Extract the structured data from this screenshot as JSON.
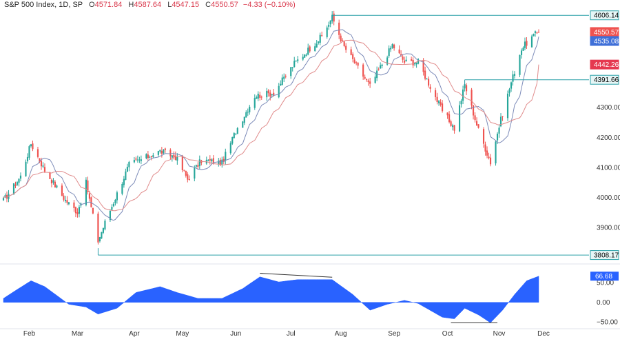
{
  "header": {
    "symbol": "S&P 500 Index, 1D, SP",
    "o_label": "O",
    "o_value": "4571.84",
    "h_label": "H",
    "h_value": "4587.64",
    "l_label": "L",
    "l_value": "4547.15",
    "c_label": "C",
    "c_value": "4550.57",
    "change": "−4.33 (−0.10%)"
  },
  "colors": {
    "up": "#26a69a",
    "down": "#ef5350",
    "ma_fast": "#7b8ab8",
    "ma_slow": "#e08a8a",
    "level_line": "#2aa0a8",
    "oscillator": "#2962ff"
  },
  "chart_data": [
    {
      "type": "candlestick",
      "title": "",
      "x": [
        "Feb",
        "Mar",
        "Apr",
        "May",
        "Jun",
        "Jul",
        "Aug",
        "Sep",
        "Oct",
        "Nov",
        "Dec"
      ],
      "ylim": [
        3790,
        4625
      ],
      "y_ticks": [
        3900,
        4000,
        4100,
        4200,
        4300,
        4400,
        4500,
        4600
      ],
      "y_tick_labels": [
        "3900.00",
        "4000.00",
        "4100.00",
        "4200.00",
        "4300.00",
        "",
        "",
        ""
      ],
      "anchors": [
        {
          "date": "2023-01-17",
          "close": 3990
        },
        {
          "date": "2023-01-27",
          "close": 4070
        },
        {
          "date": "2023-02-02",
          "close": 4179
        },
        {
          "date": "2023-02-10",
          "close": 4090
        },
        {
          "date": "2023-02-22",
          "close": 3991
        },
        {
          "date": "2023-03-01",
          "close": 3951
        },
        {
          "date": "2023-03-06",
          "close": 4048
        },
        {
          "date": "2023-03-13",
          "close": 3855
        },
        {
          "date": "2023-03-17",
          "close": 3916
        },
        {
          "date": "2023-03-31",
          "close": 4109
        },
        {
          "date": "2023-04-18",
          "close": 4154
        },
        {
          "date": "2023-04-27",
          "close": 4135
        },
        {
          "date": "2023-05-04",
          "close": 4061
        },
        {
          "date": "2023-05-12",
          "close": 4124
        },
        {
          "date": "2023-05-24",
          "close": 4115
        },
        {
          "date": "2023-06-01",
          "close": 4221
        },
        {
          "date": "2023-06-12",
          "close": 4338
        },
        {
          "date": "2023-06-23",
          "close": 4348
        },
        {
          "date": "2023-07-05",
          "close": 4446
        },
        {
          "date": "2023-07-21",
          "close": 4536
        },
        {
          "date": "2023-07-27",
          "close": 4600
        },
        {
          "date": "2023-08-03",
          "close": 4501
        },
        {
          "date": "2023-08-18",
          "close": 4370
        },
        {
          "date": "2023-08-31",
          "close": 4508
        },
        {
          "date": "2023-09-07",
          "close": 4451
        },
        {
          "date": "2023-09-15",
          "close": 4450
        },
        {
          "date": "2023-09-29",
          "close": 4288
        },
        {
          "date": "2023-10-06",
          "close": 4229
        },
        {
          "date": "2023-10-12",
          "close": 4376
        },
        {
          "date": "2023-10-20",
          "close": 4224
        },
        {
          "date": "2023-10-27",
          "close": 4117
        },
        {
          "date": "2023-11-01",
          "close": 4237
        },
        {
          "date": "2023-11-08",
          "close": 4383
        },
        {
          "date": "2023-11-14",
          "close": 4496
        },
        {
          "date": "2023-11-21",
          "close": 4538
        },
        {
          "date": "2023-11-24",
          "close": 4551
        }
      ],
      "moving_averages": [
        {
          "label": "4535.08",
          "value": 4535.08,
          "color": "#7b8ab8"
        },
        {
          "label": "4442.26",
          "value": 4442.26,
          "color": "#e08a8a"
        }
      ],
      "price_tags": [
        {
          "label": "4606.14",
          "value": 4606.14,
          "style": "level"
        },
        {
          "label": "4550.57",
          "value": 4550.57,
          "style": "last"
        },
        {
          "label": "4535.08",
          "value": 4535.08,
          "style": "ma_fast"
        },
        {
          "label": "4442.26",
          "value": 4442.26,
          "style": "ma_slow"
        },
        {
          "label": "4391.66",
          "value": 4391.66,
          "style": "level"
        },
        {
          "label": "3808.17",
          "value": 3808.17,
          "style": "level"
        }
      ],
      "horizontal_levels": [
        {
          "value": 4606.14,
          "from": "2023-07-27"
        },
        {
          "value": 4391.66,
          "from": "2023-10-12"
        },
        {
          "value": 3808.17,
          "from": "2023-03-13"
        }
      ]
    },
    {
      "type": "area",
      "title": "",
      "ylim": [
        -62,
        82
      ],
      "y_ticks": [
        50,
        0,
        -50
      ],
      "y_tick_labels": [
        "50.00",
        "0.00",
        "−50.00"
      ],
      "current_label": "66.68",
      "current_value": 66.68,
      "anchors": [
        {
          "date": "2023-01-17",
          "value": 10
        },
        {
          "date": "2023-01-24",
          "value": 30
        },
        {
          "date": "2023-02-02",
          "value": 55
        },
        {
          "date": "2023-02-10",
          "value": 40
        },
        {
          "date": "2023-02-24",
          "value": -5
        },
        {
          "date": "2023-03-06",
          "value": -12
        },
        {
          "date": "2023-03-13",
          "value": -30
        },
        {
          "date": "2023-03-24",
          "value": -15
        },
        {
          "date": "2023-04-04",
          "value": 25
        },
        {
          "date": "2023-04-18",
          "value": 40
        },
        {
          "date": "2023-04-28",
          "value": 25
        },
        {
          "date": "2023-05-10",
          "value": 10
        },
        {
          "date": "2023-05-24",
          "value": 10
        },
        {
          "date": "2023-06-05",
          "value": 35
        },
        {
          "date": "2023-06-15",
          "value": 65
        },
        {
          "date": "2023-06-26",
          "value": 52
        },
        {
          "date": "2023-07-07",
          "value": 58
        },
        {
          "date": "2023-07-27",
          "value": 58
        },
        {
          "date": "2023-08-08",
          "value": 20
        },
        {
          "date": "2023-08-18",
          "value": -20
        },
        {
          "date": "2023-08-28",
          "value": -5
        },
        {
          "date": "2023-09-07",
          "value": 5
        },
        {
          "date": "2023-09-15",
          "value": -3
        },
        {
          "date": "2023-09-29",
          "value": -38
        },
        {
          "date": "2023-10-06",
          "value": -42
        },
        {
          "date": "2023-10-12",
          "value": -15
        },
        {
          "date": "2023-10-20",
          "value": -32
        },
        {
          "date": "2023-10-27",
          "value": -52
        },
        {
          "date": "2023-11-03",
          "value": -20
        },
        {
          "date": "2023-11-10",
          "value": 20
        },
        {
          "date": "2023-11-17",
          "value": 55
        },
        {
          "date": "2023-11-24",
          "value": 66.68
        }
      ]
    }
  ]
}
